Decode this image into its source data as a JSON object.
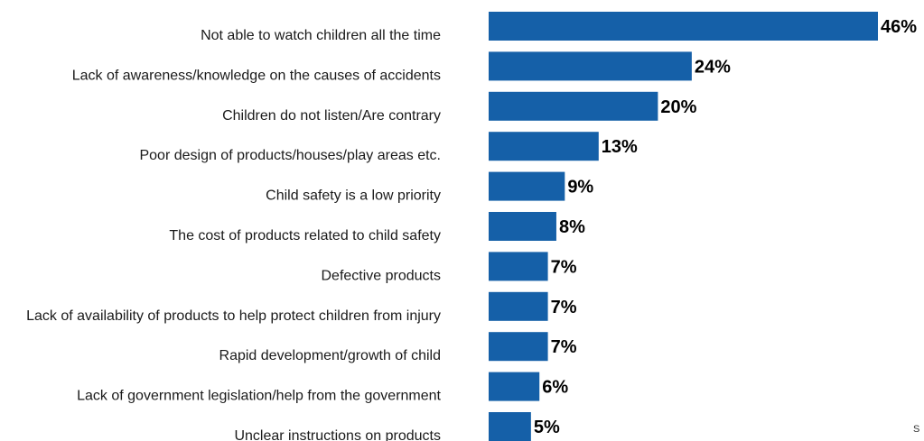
{
  "chart_data": {
    "type": "bar",
    "orientation": "horizontal",
    "title": "",
    "xlabel": "",
    "ylabel": "",
    "xlim": [
      0,
      46
    ],
    "grid": false,
    "legend": "none",
    "bar_color": "#1560a8",
    "value_suffix": "%",
    "categories": [
      "Not able to watch children all the time",
      "Lack of awareness/knowledge on the causes of accidents",
      "Children do not listen/Are contrary",
      "Poor design of products/houses/play areas etc.",
      "Child safety is a low priority",
      "The cost of products related to child safety",
      "Defective products",
      "Lack of availability of products to help protect children from injury",
      "Rapid development/growth of child",
      "Lack of government legislation/help from the government",
      "Unclear instructions on products"
    ],
    "values": [
      46,
      24,
      20,
      13,
      9,
      8,
      7,
      7,
      7,
      6,
      5
    ]
  },
  "corner_text": "S"
}
